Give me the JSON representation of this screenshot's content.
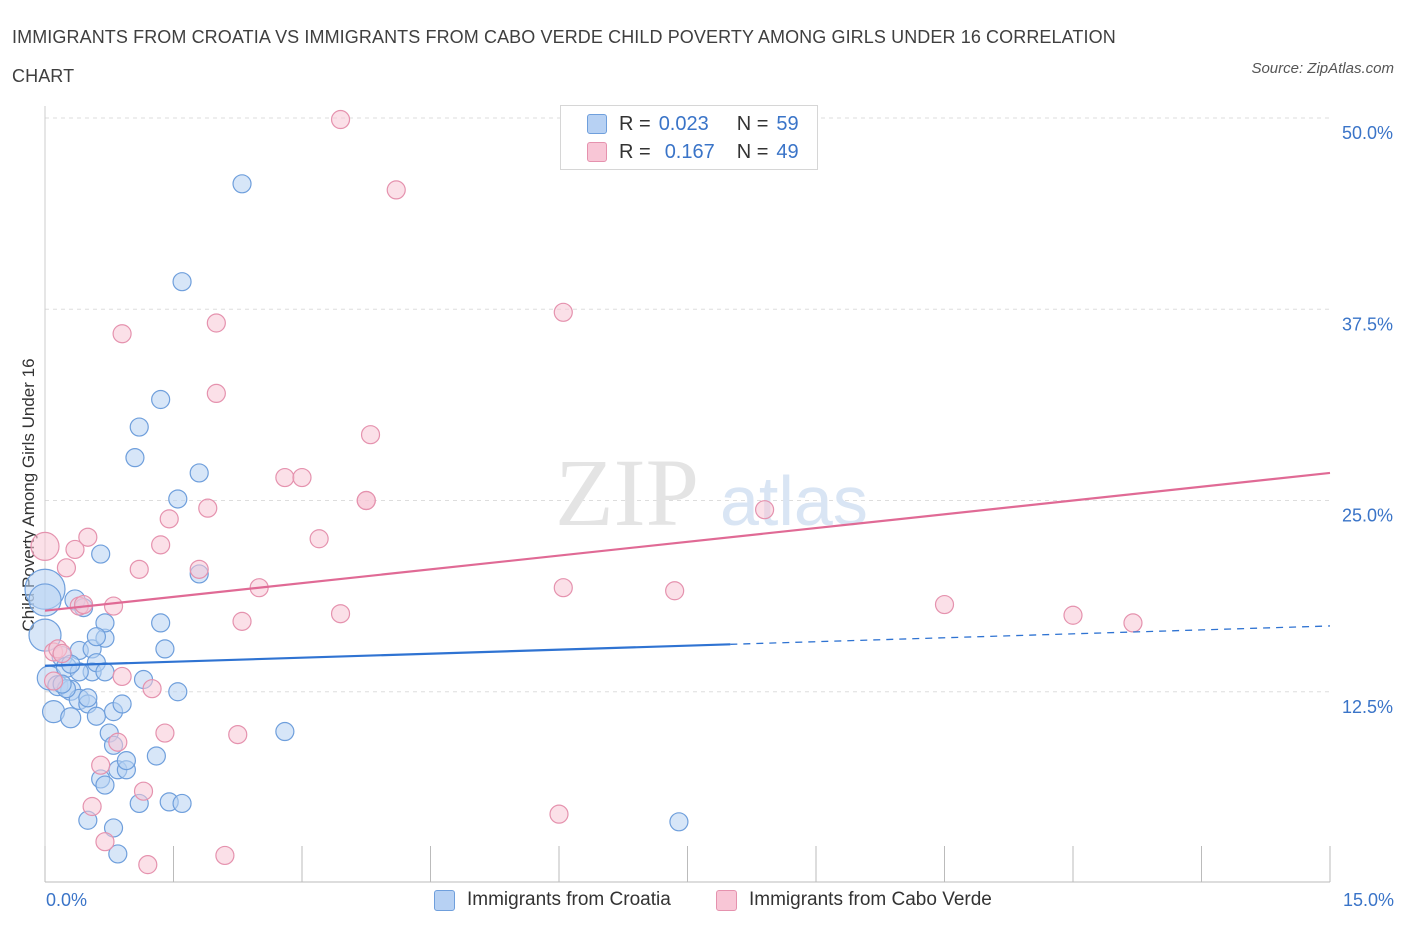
{
  "title": "IMMIGRANTS FROM CROATIA VS IMMIGRANTS FROM CABO VERDE CHILD POVERTY AMONG GIRLS UNDER 16 CORRELATION CHART",
  "source": "Source: ZipAtlas.com",
  "watermark": {
    "zip": "ZIP",
    "atlas": "atlas"
  },
  "legend_top": {
    "croatia": {
      "r_label": "R =",
      "r_value": "0.023",
      "n_label": "N =",
      "n_value": "59"
    },
    "caboverde": {
      "r_label": "R =",
      "r_value": "0.167",
      "n_label": "N =",
      "n_value": "49"
    }
  },
  "legend_bottom": {
    "croatia": "Immigrants from Croatia",
    "caboverde": "Immigrants from Cabo Verde"
  },
  "colors": {
    "croatia_fill": "#b7d1f3",
    "croatia_stroke": "#6f9fdc",
    "croatia_line": "#2f73d2",
    "caboverde_fill": "#f8c6d6",
    "caboverde_stroke": "#e592ae",
    "caboverde_line": "#e06a95",
    "tick_text": "#3a74c8",
    "grid": "#dddddd"
  },
  "chart_data": {
    "type": "scatter",
    "title": "IMMIGRANTS FROM CROATIA VS IMMIGRANTS FROM CABO VERDE CHILD POVERTY AMONG GIRLS UNDER 16 CORRELATION CHART",
    "xlabel": "",
    "ylabel": "Child Poverty Among Girls Under 16",
    "xlim": [
      0,
      15
    ],
    "ylim": [
      0,
      50
    ],
    "x_tick_labels": [
      "0.0%",
      "15.0%"
    ],
    "y_ticks": [
      12.5,
      25,
      37.5,
      50
    ],
    "y_tick_labels": [
      "12.5%",
      "25.0%",
      "37.5%",
      "50.0%"
    ],
    "grid": true,
    "legend_position": "top-center",
    "series": [
      {
        "name": "Immigrants from Croatia",
        "color": "#6f9fdc",
        "trend": {
          "x0": 0,
          "y0": 14.2,
          "x1": 8.0,
          "y1": 15.6,
          "dashed_to_x": 15,
          "dashed_to_y": 16.8
        },
        "points": [
          [
            0.0,
            19.2,
            20
          ],
          [
            0.0,
            18.5,
            16
          ],
          [
            0.0,
            16.2,
            16
          ],
          [
            0.05,
            13.4,
            12
          ],
          [
            0.1,
            11.2,
            11
          ],
          [
            0.15,
            12.9,
            10
          ],
          [
            0.2,
            14.8,
            10
          ],
          [
            0.25,
            14.1,
            10
          ],
          [
            0.3,
            10.8,
            10
          ],
          [
            0.3,
            12.6,
            10
          ],
          [
            0.35,
            18.5,
            10
          ],
          [
            0.4,
            12.0,
            10
          ],
          [
            0.4,
            15.2,
            9
          ],
          [
            0.45,
            18.0,
            9
          ],
          [
            0.5,
            11.7,
            9
          ],
          [
            0.5,
            4.1,
            9
          ],
          [
            0.55,
            13.8,
            9
          ],
          [
            0.55,
            15.3,
            9
          ],
          [
            0.6,
            10.9,
            9
          ],
          [
            0.6,
            14.4,
            9
          ],
          [
            0.65,
            6.8,
            9
          ],
          [
            0.65,
            21.5,
            9
          ],
          [
            0.7,
            16.0,
            9
          ],
          [
            0.7,
            17.0,
            9
          ],
          [
            0.7,
            13.8,
            9
          ],
          [
            0.7,
            6.4,
            9
          ],
          [
            0.75,
            9.8,
            9
          ],
          [
            0.8,
            9.0,
            9
          ],
          [
            0.8,
            11.2,
            9
          ],
          [
            0.8,
            3.6,
            9
          ],
          [
            0.85,
            1.9,
            9
          ],
          [
            0.85,
            7.4,
            9
          ],
          [
            0.9,
            11.7,
            9
          ],
          [
            0.95,
            7.4,
            9
          ],
          [
            0.95,
            8.0,
            9
          ],
          [
            1.05,
            27.8,
            9
          ],
          [
            1.1,
            29.8,
            9
          ],
          [
            1.1,
            5.2,
            9
          ],
          [
            1.15,
            13.3,
            9
          ],
          [
            1.3,
            8.3,
            9
          ],
          [
            1.35,
            17.0,
            9
          ],
          [
            1.35,
            31.6,
            9
          ],
          [
            1.4,
            15.3,
            9
          ],
          [
            1.45,
            5.3,
            9
          ],
          [
            1.55,
            12.5,
            9
          ],
          [
            1.55,
            25.1,
            9
          ],
          [
            1.6,
            5.2,
            9
          ],
          [
            1.6,
            39.3,
            9
          ],
          [
            1.8,
            26.8,
            9
          ],
          [
            1.8,
            20.2,
            9
          ],
          [
            2.3,
            45.7,
            9
          ],
          [
            2.8,
            9.9,
            9
          ],
          [
            7.4,
            4.0,
            9
          ],
          [
            0.25,
            12.7,
            9
          ],
          [
            0.2,
            13.0,
            9
          ],
          [
            0.4,
            13.8,
            9
          ],
          [
            0.6,
            16.1,
            9
          ],
          [
            0.3,
            14.3,
            9
          ],
          [
            0.5,
            12.1,
            9
          ]
        ]
      },
      {
        "name": "Immigrants from Cabo Verde",
        "color": "#e592ae",
        "trend": {
          "x0": 0,
          "y0": 17.8,
          "x1": 15,
          "y1": 26.8
        },
        "points": [
          [
            0.0,
            22.0,
            14
          ],
          [
            0.1,
            15.1,
            9
          ],
          [
            0.15,
            15.3,
            9
          ],
          [
            0.25,
            20.6,
            9
          ],
          [
            0.35,
            21.8,
            9
          ],
          [
            0.4,
            18.1,
            9
          ],
          [
            0.5,
            22.6,
            9
          ],
          [
            0.55,
            5.0,
            9
          ],
          [
            0.65,
            7.7,
            9
          ],
          [
            0.7,
            2.7,
            9
          ],
          [
            0.8,
            18.1,
            9
          ],
          [
            0.85,
            9.2,
            9
          ],
          [
            0.9,
            13.5,
            9
          ],
          [
            0.9,
            35.9,
            9
          ],
          [
            1.1,
            20.5,
            9
          ],
          [
            1.15,
            6.0,
            9
          ],
          [
            1.2,
            1.2,
            9
          ],
          [
            1.25,
            12.7,
            9
          ],
          [
            1.35,
            22.1,
            9
          ],
          [
            1.4,
            9.8,
            9
          ],
          [
            1.45,
            23.8,
            9
          ],
          [
            1.8,
            20.5,
            9
          ],
          [
            1.9,
            24.5,
            9
          ],
          [
            2.0,
            32.0,
            9
          ],
          [
            2.0,
            36.6,
            9
          ],
          [
            2.1,
            1.8,
            9
          ],
          [
            2.25,
            9.7,
            9
          ],
          [
            2.3,
            17.1,
            9
          ],
          [
            2.5,
            19.3,
            9
          ],
          [
            2.8,
            26.5,
            9
          ],
          [
            3.0,
            26.5,
            9
          ],
          [
            3.2,
            22.5,
            9
          ],
          [
            3.45,
            17.6,
            9
          ],
          [
            3.45,
            49.9,
            9
          ],
          [
            3.75,
            25.0,
            9
          ],
          [
            3.75,
            25.0,
            9
          ],
          [
            3.8,
            29.3,
            9
          ],
          [
            4.1,
            45.3,
            9
          ],
          [
            6.0,
            4.5,
            9
          ],
          [
            6.05,
            37.3,
            9
          ],
          [
            6.05,
            19.3,
            9
          ],
          [
            7.35,
            19.1,
            9
          ],
          [
            8.4,
            24.4,
            9
          ],
          [
            10.5,
            18.2,
            9
          ],
          [
            12.0,
            17.5,
            9
          ],
          [
            12.7,
            17.0,
            9
          ],
          [
            0.1,
            13.2,
            9
          ],
          [
            0.2,
            15.0,
            9
          ],
          [
            0.45,
            18.2,
            9
          ]
        ]
      }
    ]
  }
}
